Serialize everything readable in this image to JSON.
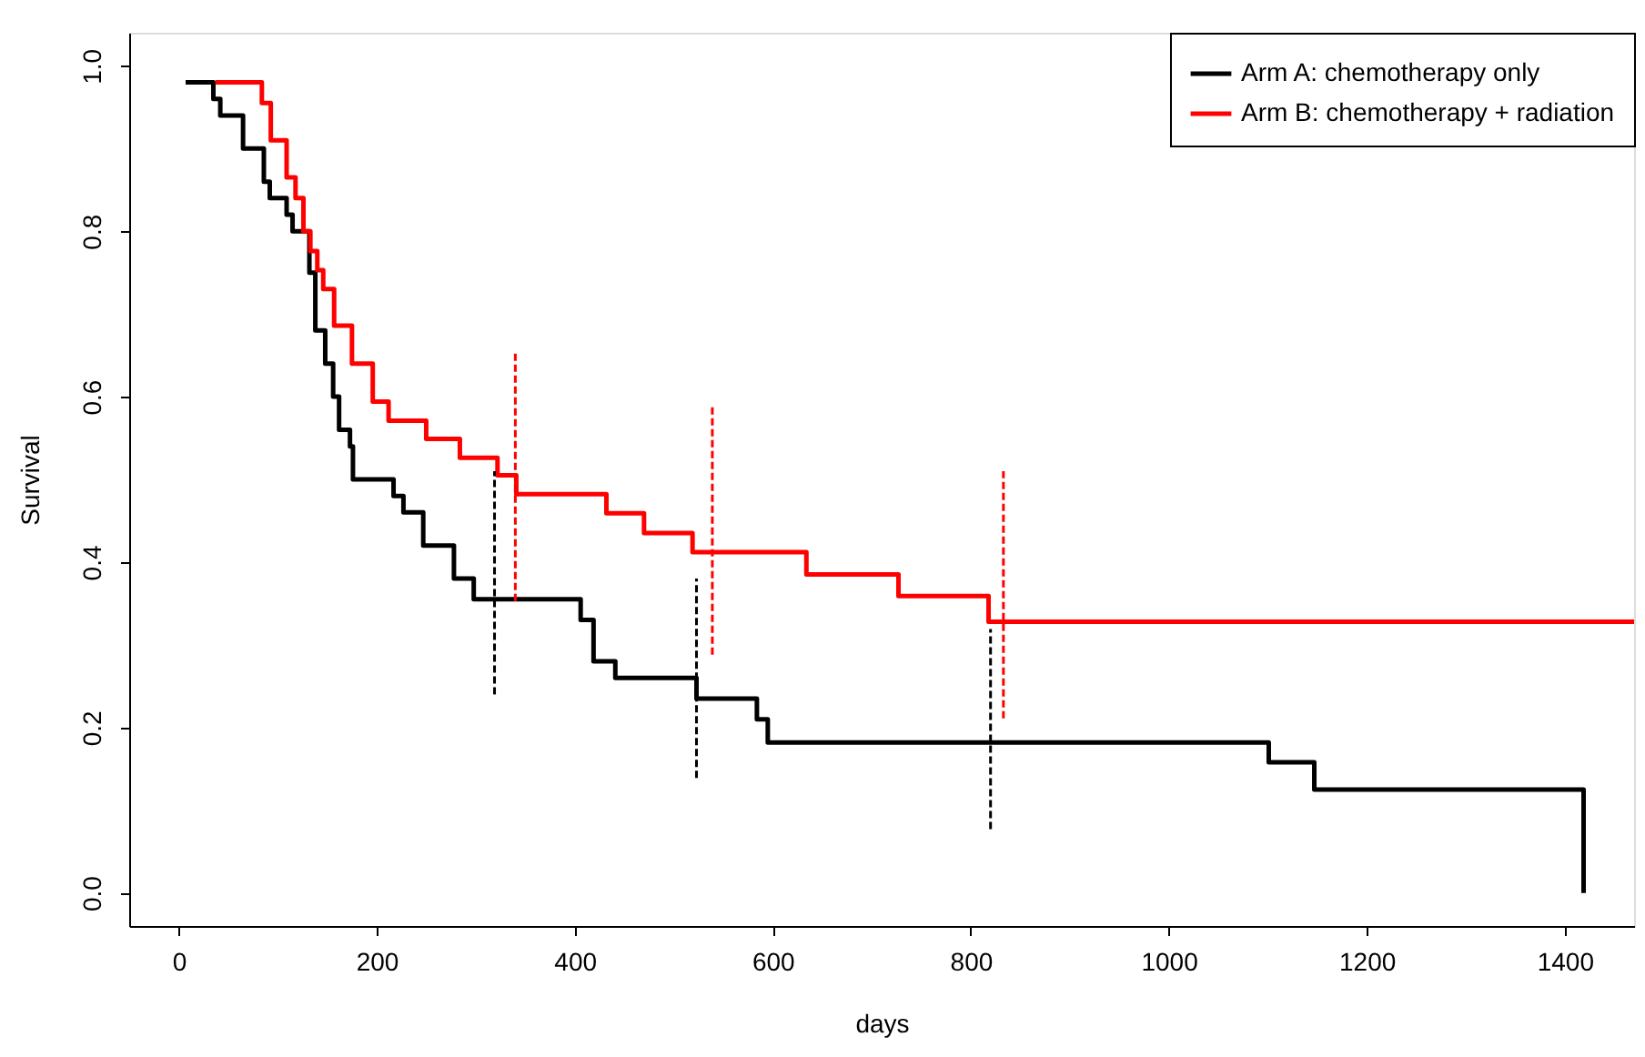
{
  "chart_data": {
    "type": "step",
    "xlabel": "days",
    "ylabel": "Survival",
    "xlim": [
      -50,
      1470
    ],
    "ylim": [
      -0.04,
      1.04
    ],
    "xticks": [
      0,
      200,
      400,
      600,
      800,
      1000,
      1200,
      1400
    ],
    "yticks": [
      {
        "value": 0,
        "label": "0.0"
      },
      {
        "value": 0.2,
        "label": "0.2"
      },
      {
        "value": 0.4,
        "label": "0.4"
      },
      {
        "value": 0.6,
        "label": "0.6"
      },
      {
        "value": 0.8,
        "label": "0.8"
      },
      {
        "value": 1,
        "label": "1.0"
      }
    ],
    "grid": false,
    "legend": "top right",
    "marker": "none",
    "series": [
      {
        "name": "Arm A: chemotherapy only",
        "color": "#000000",
        "line_style": "solid",
        "x": [
          7,
          35,
          42,
          65,
          86,
          92,
          109,
          115,
          132,
          138,
          148,
          156,
          162,
          173,
          176,
          217,
          227,
          247,
          278,
          298,
          406,
          419,
          441,
          523,
          584,
          595,
          1101,
          1147,
          1419
        ],
        "values": [
          0.98,
          0.96,
          0.94,
          0.9,
          0.86,
          0.84,
          0.82,
          0.8,
          0.75,
          0.68,
          0.64,
          0.6,
          0.56,
          0.54,
          0.5,
          0.48,
          0.46,
          0.42,
          0.38,
          0.355,
          0.33,
          0.28,
          0.26,
          0.235,
          0.21,
          0.182,
          0.158,
          0.125,
          0
        ]
      },
      {
        "name": "Arm B: chemotherapy + radiation",
        "color": "#ff0000",
        "line_style": "solid",
        "x": [
          37,
          84,
          93,
          109,
          118,
          126,
          133,
          140,
          146,
          157,
          175,
          196,
          212,
          250,
          284,
          322,
          341,
          432,
          470,
          519,
          634,
          727,
          818,
          1470
        ],
        "values": [
          0.98,
          0.955,
          0.91,
          0.865,
          0.84,
          0.8,
          0.776,
          0.753,
          0.73,
          0.686,
          0.64,
          0.594,
          0.571,
          0.549,
          0.526,
          0.505,
          0.482,
          0.459,
          0.435,
          0.412,
          0.385,
          0.359,
          0.328,
          0.328
        ]
      },
      {
        "color": "#000000",
        "type": "line",
        "line_style": "dashed",
        "x": [
          319,
          319
        ],
        "values": [
          0.24,
          0.51
        ]
      },
      {
        "color": "#ff0000",
        "type": "line",
        "line_style": "dashed",
        "x": [
          340,
          340
        ],
        "values": [
          0.353,
          0.656
        ]
      },
      {
        "color": "#000000",
        "type": "line",
        "line_style": "dashed",
        "x": [
          523,
          523
        ],
        "values": [
          0.139,
          0.38
        ]
      },
      {
        "color": "#ff0000",
        "type": "line",
        "line_style": "dashed",
        "x": [
          539,
          539
        ],
        "values": [
          0.288,
          0.588
        ]
      },
      {
        "color": "#000000",
        "type": "line",
        "line_style": "dashed",
        "x": [
          820,
          820
        ],
        "values": [
          0.077,
          0.319
        ]
      },
      {
        "color": "#ff0000",
        "type": "line",
        "line_style": "dashed",
        "x": [
          833,
          833
        ],
        "values": [
          0.211,
          0.51
        ]
      }
    ]
  }
}
